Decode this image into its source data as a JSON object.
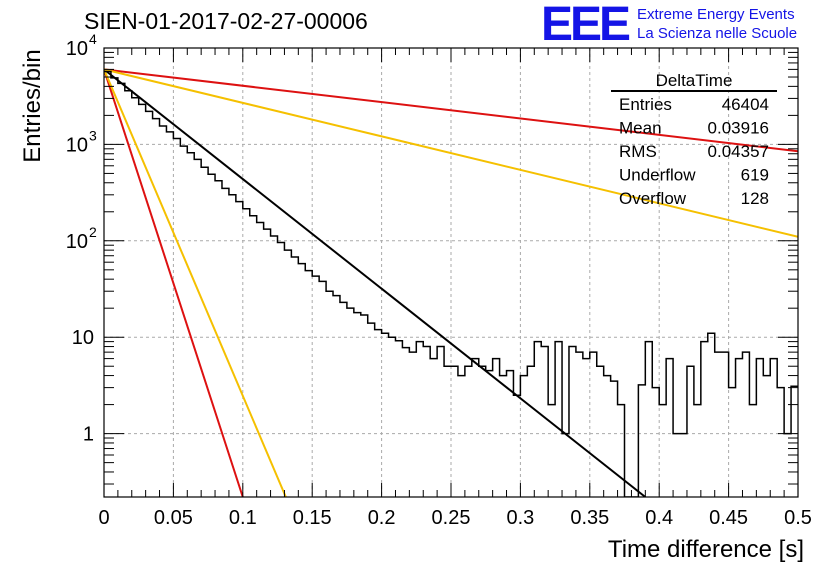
{
  "chart_data": {
    "type": "histogram",
    "title": "SIEN-01-2017-02-27-00006",
    "xlabel": "Time difference [s]",
    "ylabel": "Entries/bin",
    "xlim": [
      0,
      0.5
    ],
    "ylim": [
      0.22,
      10000
    ],
    "yscale": "log",
    "grid": true,
    "x_ticks": [
      "0",
      "0.05",
      "0.1",
      "0.15",
      "0.2",
      "0.25",
      "0.3",
      "0.35",
      "0.4",
      "0.45",
      "0.5"
    ],
    "y_ticks": [
      {
        "value": 1,
        "label": "1"
      },
      {
        "value": 10,
        "label": "10"
      },
      {
        "value": 100,
        "label": "10",
        "exp": "2"
      },
      {
        "value": 1000,
        "label": "10",
        "exp": "3"
      },
      {
        "value": 10000,
        "label": "10",
        "exp": "4"
      }
    ],
    "stats": {
      "title": "DeltaTime",
      "rows": [
        {
          "label": "Entries",
          "value": "46404"
        },
        {
          "label": "Mean",
          "value": "0.03916"
        },
        {
          "label": "RMS",
          "value": "0.04357"
        },
        {
          "label": "Underflow",
          "value": "619"
        },
        {
          "label": "Overflow",
          "value": "128"
        }
      ]
    },
    "histogram": {
      "bin_width": 0.005,
      "values": [
        5700,
        4900,
        4300,
        3600,
        3050,
        2600,
        2200,
        1850,
        1550,
        1350,
        1150,
        960,
        820,
        700,
        580,
        490,
        420,
        350,
        300,
        255,
        215,
        182,
        155,
        132,
        112,
        96,
        80,
        68,
        58,
        49,
        43,
        38,
        30,
        27,
        23,
        20,
        18,
        17,
        14,
        12,
        11,
        10,
        9.2,
        7.8,
        7,
        9,
        8,
        6,
        8,
        5,
        5,
        4,
        5,
        6,
        5,
        4.5,
        6,
        4,
        4.5,
        2.5,
        4,
        5,
        9,
        8,
        2,
        9,
        1,
        8,
        7,
        6,
        7,
        5,
        4,
        3.5,
        2,
        0,
        0,
        3.2,
        9,
        3,
        2,
        6,
        1,
        1,
        5,
        2,
        9,
        11,
        7,
        7,
        3,
        6,
        7,
        2,
        6,
        4,
        6,
        3,
        1,
        3.1
      ]
    },
    "fits": [
      {
        "color": "#000000",
        "x0": 0,
        "x1": 0.39,
        "y0": 6000,
        "y1": 0.22
      },
      {
        "color": "#dd1111",
        "x0": 0,
        "x1": 0.5,
        "y0": 6000,
        "y1": 850
      },
      {
        "color": "#f5c000",
        "x0": 0,
        "x1": 0.5,
        "y0": 6000,
        "y1": 110
      },
      {
        "color": "#dd1111",
        "x0": 0,
        "x1": 0.1,
        "y0": 6000,
        "y1": 0.22
      },
      {
        "color": "#f5c000",
        "x0": 0,
        "x1": 0.131,
        "y0": 6000,
        "y1": 0.22
      }
    ]
  },
  "logo": {
    "text": "EEE",
    "line1": "Extreme Energy Events",
    "line2": "La Scienza nelle Scuole",
    "color": "#1414e6"
  }
}
